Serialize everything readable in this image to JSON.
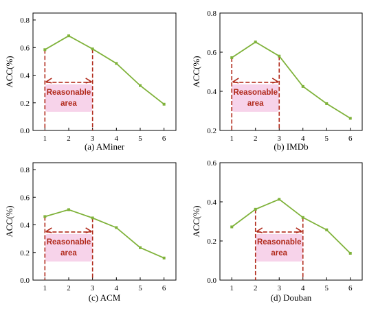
{
  "colors": {
    "line": "#7fb23a",
    "dash": "#b0291a",
    "label": "#b0291a",
    "highlight": "#f7d3ea"
  },
  "chart_data": [
    {
      "type": "line",
      "caption": "(a) AMiner",
      "ylabel": "ACC(%)",
      "x": [
        1,
        2,
        3,
        4,
        5,
        6
      ],
      "values": [
        0.585,
        0.685,
        0.59,
        0.485,
        0.325,
        0.19
      ],
      "xticks": [
        "1",
        "2",
        "3",
        "4",
        "5",
        "6"
      ],
      "yticks": [
        "0.0",
        "0.2",
        "0.4",
        "0.6",
        "0.8"
      ],
      "ylim": [
        0,
        0.85
      ],
      "xlim": [
        0.5,
        6.5
      ],
      "annotation": {
        "text": [
          "Reasonable",
          "area"
        ],
        "range": [
          1,
          3
        ]
      }
    },
    {
      "type": "line",
      "caption": "(b) IMDb",
      "ylabel": "ACC(%)",
      "x": [
        1,
        2,
        3,
        4,
        5,
        6
      ],
      "values": [
        0.572,
        0.652,
        0.58,
        0.425,
        0.337,
        0.262
      ],
      "xticks": [
        "1",
        "2",
        "3",
        "4",
        "5",
        "6"
      ],
      "yticks": [
        "0.2",
        "0.4",
        "0.6",
        "0.8"
      ],
      "ylim": [
        0.2,
        0.8
      ],
      "xlim": [
        0.5,
        6.5
      ],
      "annotation": {
        "text": [
          "Reasonable",
          "area"
        ],
        "range": [
          1,
          3
        ]
      }
    },
    {
      "type": "line",
      "caption": "(c) ACM",
      "ylabel": "ACC(%)",
      "x": [
        1,
        2,
        3,
        4,
        5,
        6
      ],
      "values": [
        0.46,
        0.51,
        0.45,
        0.38,
        0.235,
        0.16
      ],
      "xticks": [
        "1",
        "2",
        "3",
        "4",
        "5",
        "6"
      ],
      "yticks": [
        "0.0",
        "0.2",
        "0.4",
        "0.6",
        "0.8"
      ],
      "ylim": [
        0,
        0.85
      ],
      "xlim": [
        0.5,
        6.5
      ],
      "annotation": {
        "text": [
          "Reasonable",
          "area"
        ],
        "range": [
          1,
          3
        ]
      }
    },
    {
      "type": "line",
      "caption": "(d) Douban",
      "ylabel": "ACC(%)",
      "x": [
        1,
        2,
        3,
        4,
        5,
        6
      ],
      "values": [
        0.272,
        0.362,
        0.413,
        0.32,
        0.257,
        0.137
      ],
      "xticks": [
        "1",
        "2",
        "3",
        "4",
        "5",
        "6"
      ],
      "yticks": [
        "0.0",
        "0.2",
        "0.4",
        "0.6"
      ],
      "ylim": [
        0,
        0.6
      ],
      "xlim": [
        0.5,
        6.5
      ],
      "annotation": {
        "text": [
          "Reasonable",
          "area"
        ],
        "range": [
          2,
          4
        ]
      }
    }
  ]
}
